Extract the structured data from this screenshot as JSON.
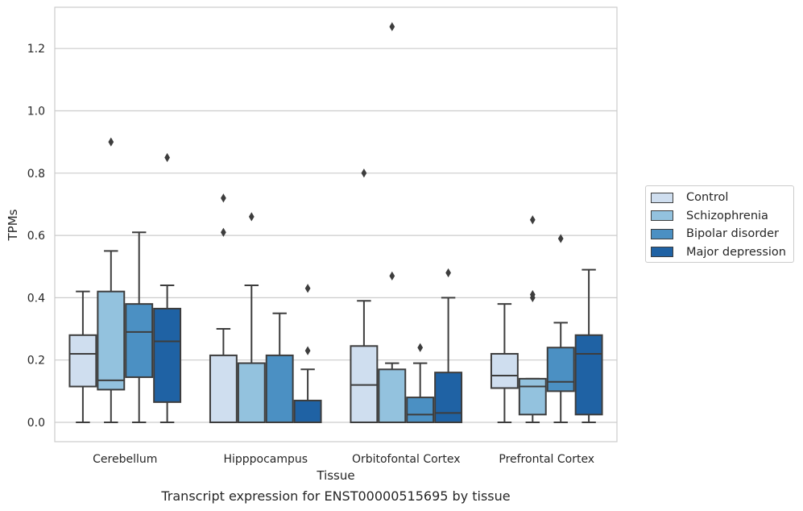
{
  "chart_data": {
    "type": "boxplot",
    "xlabel": "Tissue",
    "ylabel": "TPMs",
    "caption": "Transcript expression for ENST00000515695 by tissue",
    "ylim": [
      -0.062,
      1.335
    ],
    "yticks": [
      0.0,
      0.2,
      0.4,
      0.6,
      0.8,
      1.0,
      1.2
    ],
    "ytick_labels": [
      "0.0",
      "0.2",
      "0.4",
      "0.6",
      "0.8",
      "1.0",
      "1.2"
    ],
    "grid": "horizontal",
    "legend_position": "right",
    "categories": [
      "Cerebellum",
      "Hipppocampus",
      "Orbitofontal Cortex",
      "Prefrontal Cortex"
    ],
    "series": [
      {
        "name": "Control",
        "color": "#cfdeef",
        "boxes": [
          {
            "whisker_low": 0.0,
            "q1": 0.115,
            "median": 0.22,
            "q3": 0.28,
            "whisker_high": 0.42,
            "outliers": []
          },
          {
            "whisker_low": 0.0,
            "q1": 0.0,
            "median": 0.0,
            "q3": 0.215,
            "whisker_high": 0.3,
            "outliers": [
              0.61,
              0.72
            ]
          },
          {
            "whisker_low": 0.0,
            "q1": 0.0,
            "median": 0.12,
            "q3": 0.245,
            "whisker_high": 0.39,
            "outliers": [
              0.8
            ]
          },
          {
            "whisker_low": 0.0,
            "q1": 0.11,
            "median": 0.15,
            "q3": 0.22,
            "whisker_high": 0.38,
            "outliers": []
          }
        ]
      },
      {
        "name": "Schizophrenia",
        "color": "#93c2de",
        "boxes": [
          {
            "whisker_low": 0.0,
            "q1": 0.105,
            "median": 0.135,
            "q3": 0.42,
            "whisker_high": 0.55,
            "outliers": [
              0.9
            ]
          },
          {
            "whisker_low": 0.0,
            "q1": 0.0,
            "median": 0.0,
            "q3": 0.19,
            "whisker_high": 0.44,
            "outliers": [
              0.66
            ]
          },
          {
            "whisker_low": 0.0,
            "q1": 0.0,
            "median": 0.0,
            "q3": 0.17,
            "whisker_high": 0.19,
            "outliers": [
              0.47,
              1.27
            ]
          },
          {
            "whisker_low": 0.0,
            "q1": 0.025,
            "median": 0.115,
            "q3": 0.14,
            "whisker_high": 0.14,
            "outliers": [
              0.4,
              0.41,
              0.65
            ]
          }
        ]
      },
      {
        "name": "Bipolar disorder",
        "color": "#4b90c3",
        "boxes": [
          {
            "whisker_low": 0.0,
            "q1": 0.145,
            "median": 0.29,
            "q3": 0.38,
            "whisker_high": 0.61,
            "outliers": []
          },
          {
            "whisker_low": 0.0,
            "q1": 0.0,
            "median": 0.0,
            "q3": 0.215,
            "whisker_high": 0.35,
            "outliers": []
          },
          {
            "whisker_low": 0.0,
            "q1": 0.0,
            "median": 0.025,
            "q3": 0.08,
            "whisker_high": 0.19,
            "outliers": [
              0.24
            ]
          },
          {
            "whisker_low": 0.0,
            "q1": 0.1,
            "median": 0.13,
            "q3": 0.24,
            "whisker_high": 0.32,
            "outliers": [
              0.59
            ]
          }
        ]
      },
      {
        "name": "Major depression",
        "color": "#1f62a4",
        "boxes": [
          {
            "whisker_low": 0.0,
            "q1": 0.065,
            "median": 0.26,
            "q3": 0.365,
            "whisker_high": 0.44,
            "outliers": [
              0.85
            ]
          },
          {
            "whisker_low": 0.0,
            "q1": 0.0,
            "median": 0.0,
            "q3": 0.07,
            "whisker_high": 0.17,
            "outliers": [
              0.23,
              0.43
            ]
          },
          {
            "whisker_low": 0.0,
            "q1": 0.0,
            "median": 0.03,
            "q3": 0.16,
            "whisker_high": 0.4,
            "outliers": [
              0.48
            ]
          },
          {
            "whisker_low": 0.0,
            "q1": 0.025,
            "median": 0.22,
            "q3": 0.28,
            "whisker_high": 0.49,
            "outliers": []
          }
        ]
      }
    ]
  }
}
